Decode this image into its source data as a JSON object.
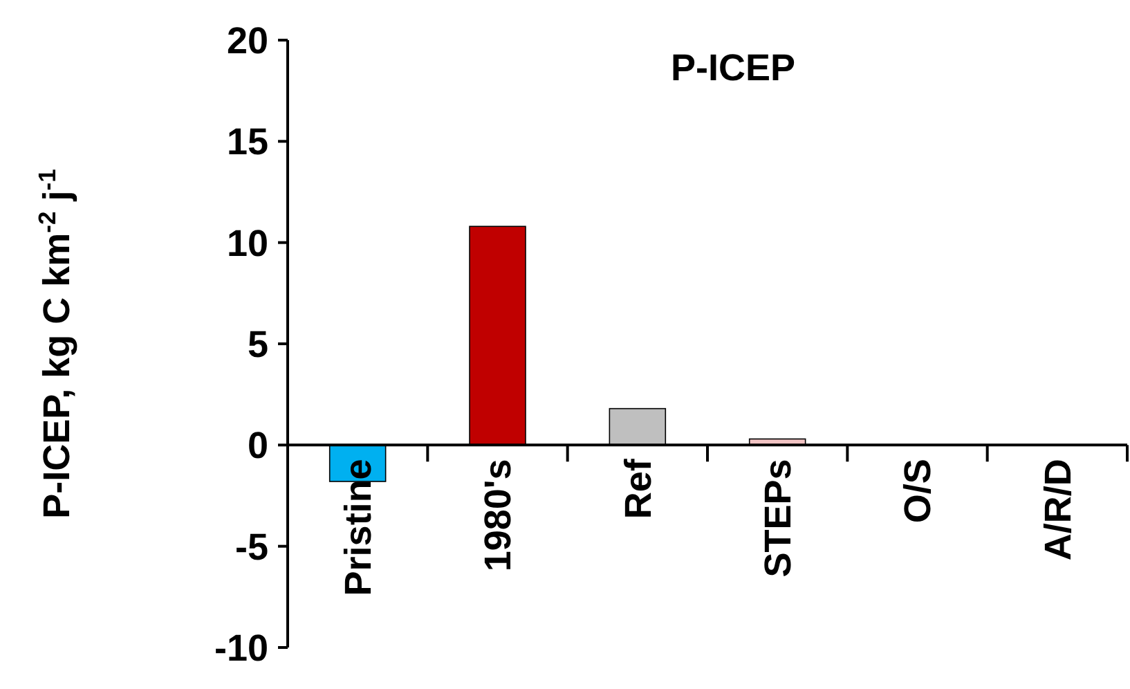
{
  "chart_data": {
    "type": "bar",
    "title": "P-ICEP",
    "ylabel": "P-ICEP, kg C km$^{-2}$ j$^{-1}$",
    "categories": [
      "Pristine",
      "1980's",
      "Ref",
      "STEPs",
      "O/S",
      "A/R/D"
    ],
    "values": [
      -1.8,
      10.8,
      1.8,
      0.3,
      0,
      0
    ],
    "colors": [
      "#00b0f0",
      "#c00000",
      "#bfbfbf",
      "#f2c4c4",
      "#ffffff",
      "#ffffff"
    ],
    "ylim": [
      -10,
      20
    ],
    "yticks": [
      -10,
      -5,
      0,
      5,
      10,
      15,
      20
    ]
  }
}
